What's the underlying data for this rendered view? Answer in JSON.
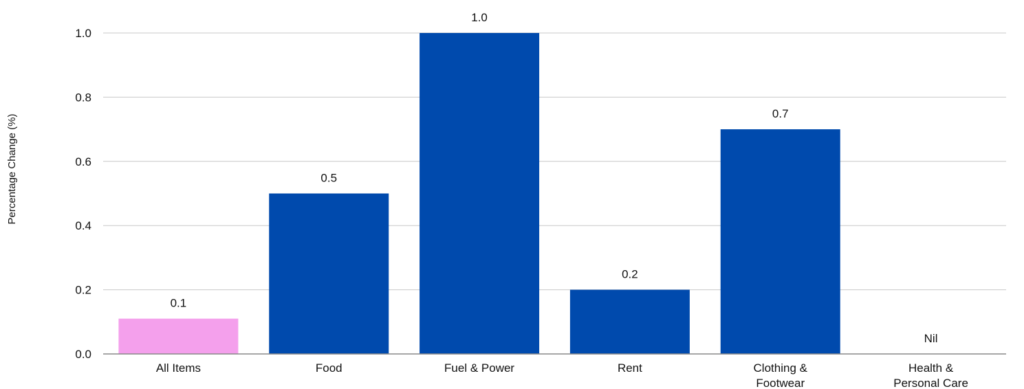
{
  "chart_data": {
    "type": "bar",
    "title": "",
    "xlabel": "",
    "ylabel": "Percentage Change (%)",
    "ylim": [
      0,
      1.0
    ],
    "y_ticks": [
      "0.0",
      "0.2",
      "0.4",
      "0.6",
      "0.8",
      "1.0"
    ],
    "grid": true,
    "categories": [
      [
        "All Items"
      ],
      [
        "Food"
      ],
      [
        "Fuel & Power"
      ],
      [
        "Rent"
      ],
      [
        "Clothing &",
        "Footwear"
      ],
      [
        "Health &",
        "Personal Care"
      ]
    ],
    "values": [
      0.11,
      0.5,
      1.0,
      0.2,
      0.7,
      0
    ],
    "data_labels": [
      "0.1",
      "0.5",
      "1.0",
      "0.2",
      "0.7",
      "Nil"
    ],
    "colors": [
      "#f4a0ec",
      "#004aad",
      "#004aad",
      "#004aad",
      "#004aad",
      "#004aad"
    ]
  }
}
